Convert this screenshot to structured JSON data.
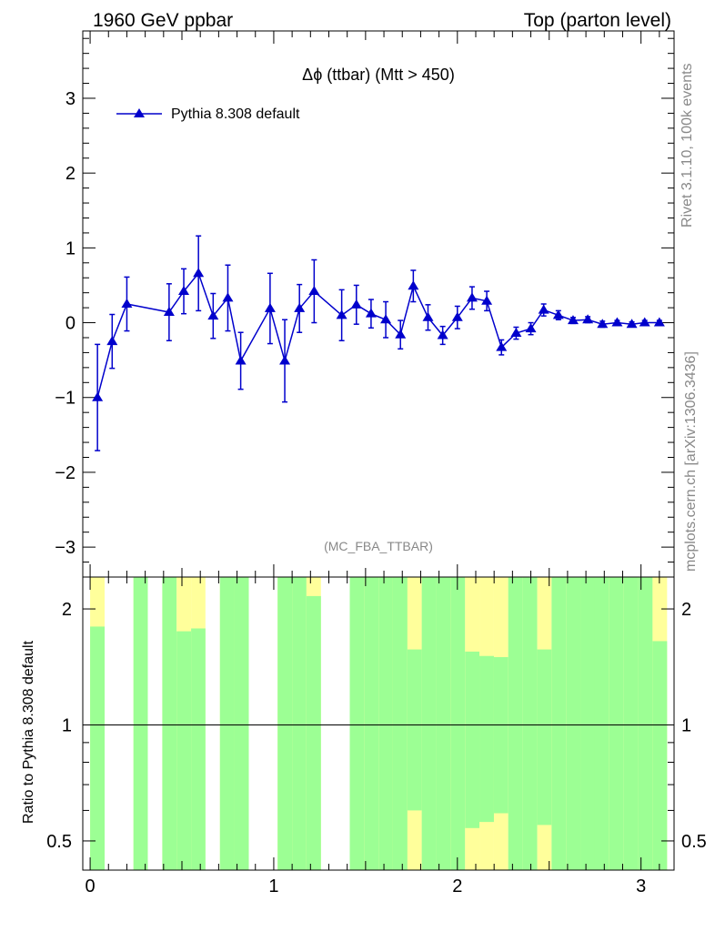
{
  "header": {
    "left": "1960 GeV ppbar",
    "right": "Top (parton level)"
  },
  "side": {
    "rivet": "Rivet 3.1.10,  100k events",
    "mcplots": "mcplots.cern.ch [arXiv:1306.3436]"
  },
  "chart_data": [
    {
      "type": "line",
      "title": "Δϕ (ttbar) (Mtt > 450)",
      "analysis_label": "(MC_FBA_TTBAR)",
      "legend": {
        "position": "top-left",
        "entries": [
          "Pythia 8.308 default"
        ]
      },
      "xlim": [
        -0.04,
        3.18
      ],
      "ylim": [
        -3.4,
        3.9
      ],
      "yticks": [
        -3,
        -2,
        -1,
        0,
        1,
        2,
        3
      ],
      "ytick_labels": [
        "−3",
        "−2",
        "−1",
        "0",
        "1",
        "2",
        "3"
      ],
      "color": "#0000cc",
      "series": [
        {
          "name": "Pythia 8.308 default",
          "x": [
            0.04,
            0.12,
            0.2,
            0.43,
            0.51,
            0.59,
            0.67,
            0.75,
            0.82,
            0.98,
            1.06,
            1.14,
            1.22,
            1.37,
            1.45,
            1.53,
            1.61,
            1.69,
            1.76,
            1.84,
            1.92,
            2.0,
            2.08,
            2.16,
            2.24,
            2.32,
            2.4,
            2.47,
            2.55,
            2.63,
            2.71,
            2.79,
            2.87,
            2.95,
            3.02,
            3.1
          ],
          "y": [
            -1.0,
            -0.25,
            0.25,
            0.14,
            0.42,
            0.66,
            0.09,
            0.33,
            -0.51,
            0.19,
            -0.51,
            0.19,
            0.42,
            0.1,
            0.24,
            0.12,
            0.04,
            -0.16,
            0.49,
            0.07,
            -0.17,
            0.07,
            0.33,
            0.29,
            -0.33,
            -0.14,
            -0.08,
            0.17,
            0.1,
            0.03,
            0.04,
            -0.02,
            0.0,
            -0.02,
            0.0,
            0.0
          ],
          "err": [
            0.71,
            0.36,
            0.36,
            0.38,
            0.3,
            0.5,
            0.3,
            0.44,
            0.38,
            0.47,
            0.55,
            0.32,
            0.42,
            0.34,
            0.26,
            0.19,
            0.24,
            0.19,
            0.21,
            0.17,
            0.12,
            0.15,
            0.15,
            0.13,
            0.1,
            0.08,
            0.08,
            0.08,
            0.06,
            0.04,
            0.04,
            0.04,
            0.03,
            0.03,
            0.03,
            0.03
          ]
        }
      ]
    },
    {
      "type": "bar",
      "ylabel": "Ratio to Pythia 8.308 default",
      "xlim": [
        -0.04,
        3.18
      ],
      "ylim": [
        0.42,
        2.42
      ],
      "yticks": [
        0.5,
        1,
        2
      ],
      "ytick_labels": [
        "0.5",
        "1",
        "2"
      ],
      "xticks": [
        0,
        1,
        2,
        3
      ],
      "xtick_labels": [
        "0",
        "1",
        "2",
        "3"
      ],
      "reference_line": 1,
      "band_colors": {
        "inner": "#9cff94",
        "outer": "#ffff9b"
      },
      "bins": {
        "x0": [
          0.0,
          0.079,
          0.236,
          0.393,
          0.471,
          0.55,
          0.628,
          0.707,
          0.785,
          0.942,
          1.021,
          1.1,
          1.178,
          1.335,
          1.414,
          1.492,
          1.571,
          1.649,
          1.728,
          1.806,
          1.885,
          1.963,
          2.042,
          2.12,
          2.199,
          2.277,
          2.356,
          2.435,
          2.513,
          2.592,
          2.67,
          2.749,
          2.827,
          2.906,
          2.985,
          3.063
        ],
        "x1": [
          0.079,
          0.157,
          0.314,
          0.471,
          0.55,
          0.628,
          0.707,
          0.785,
          0.864,
          1.021,
          1.1,
          1.178,
          1.257,
          1.414,
          1.492,
          1.571,
          1.649,
          1.728,
          1.806,
          1.885,
          1.963,
          2.042,
          2.12,
          2.199,
          2.277,
          2.356,
          2.435,
          2.513,
          2.592,
          2.67,
          2.749,
          2.827,
          2.906,
          2.985,
          3.063,
          3.142
        ],
        "yellow_lo": [
          0.42,
          0.42,
          0.42,
          0.42,
          0.42,
          0.42,
          0.42,
          0.42,
          0.42,
          0.42,
          0.42,
          0.42,
          0.42,
          0.42,
          0.42,
          0.42,
          0.42,
          0.42,
          0.42,
          0.42,
          0.42,
          0.42,
          0.42,
          0.42,
          0.42,
          0.42,
          0.42,
          0.42,
          0.42,
          0.42,
          0.42,
          0.42,
          0.42,
          0.42,
          0.42,
          0.42
        ],
        "yellow_hi": [
          2.42,
          2.42,
          2.42,
          2.42,
          2.42,
          2.42,
          2.42,
          2.42,
          2.42,
          2.42,
          2.42,
          2.42,
          2.42,
          2.42,
          2.42,
          2.42,
          2.42,
          2.42,
          2.42,
          2.42,
          2.42,
          2.42,
          2.42,
          2.42,
          2.42,
          2.42,
          2.42,
          2.42,
          2.42,
          2.42,
          2.42,
          2.42,
          2.42,
          2.42,
          2.42,
          2.42
        ],
        "green_lo": [
          0.42,
          0.42,
          0.42,
          0.42,
          0.42,
          0.42,
          0.42,
          0.42,
          0.42,
          0.42,
          0.42,
          0.42,
          0.42,
          0.42,
          0.42,
          0.42,
          0.42,
          0.42,
          0.6,
          0.42,
          0.42,
          0.42,
          0.54,
          0.56,
          0.59,
          0.42,
          0.42,
          0.55,
          0.42,
          0.42,
          0.42,
          0.42,
          0.42,
          0.42,
          0.42,
          0.42
        ],
        "green_hi": [
          1.8,
          2.42,
          2.42,
          2.42,
          1.75,
          1.78,
          2.42,
          2.42,
          2.42,
          2.42,
          2.42,
          2.42,
          2.16,
          2.42,
          2.42,
          2.42,
          2.42,
          2.42,
          1.57,
          2.42,
          2.42,
          2.42,
          1.55,
          1.51,
          1.5,
          2.42,
          2.42,
          1.57,
          2.42,
          2.42,
          2.42,
          2.42,
          2.42,
          2.42,
          2.42,
          1.65
        ],
        "gaps": [
          1,
          6,
          9,
          13
        ]
      }
    }
  ]
}
